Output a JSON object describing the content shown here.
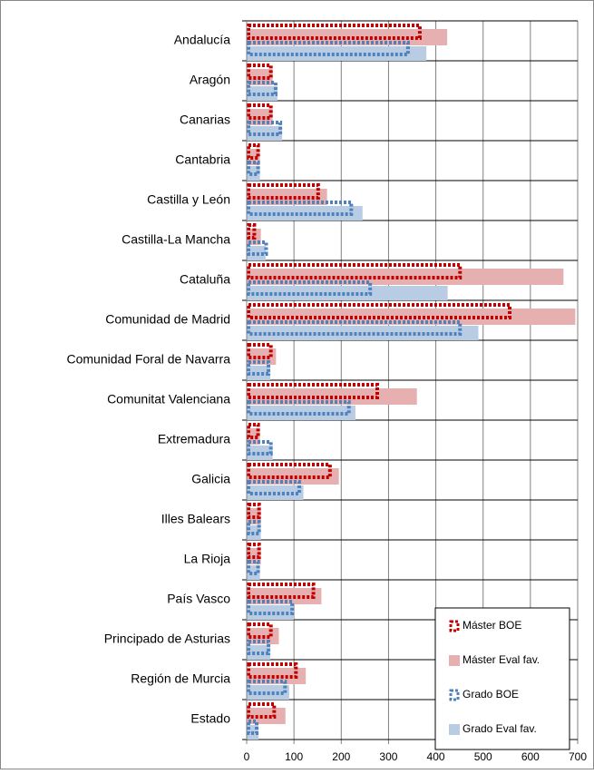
{
  "chart_data": {
    "type": "hbar",
    "categories": [
      "Andalucía",
      "Aragón",
      "Canarias",
      "Cantabria",
      "Castilla y León",
      "Castilla-La Mancha",
      "Cataluña",
      "Comunidad de Madrid",
      "Comunidad Foral de Navarra",
      "Comunitat Valenciana",
      "Extremadura",
      "Galicia",
      "Illes Balears",
      "La Rioja",
      "País Vasco",
      "Principado de Asturias",
      "Región de Murcia",
      "Estado"
    ],
    "series": [
      {
        "name": "Máster BOE",
        "color": "#c00000",
        "style": "dotted",
        "values": [
          370,
          55,
          55,
          28,
          155,
          20,
          455,
          560,
          55,
          280,
          28,
          180,
          30,
          30,
          145,
          55,
          108,
          62
        ]
      },
      {
        "name": "Máster Eval fav.",
        "color": "#e6b0b0",
        "style": "solid",
        "values": [
          424,
          55,
          55,
          28,
          170,
          30,
          670,
          695,
          62,
          360,
          28,
          195,
          30,
          30,
          158,
          68,
          125,
          82
        ]
      },
      {
        "name": "Grado BOE",
        "color": "#4f81bd",
        "style": "dotted",
        "values": [
          345,
          65,
          75,
          28,
          225,
          45,
          265,
          455,
          50,
          220,
          55,
          115,
          30,
          28,
          100,
          50,
          85,
          25
        ]
      },
      {
        "name": "Grado Eval fav.",
        "color": "#b8cce4",
        "style": "solid",
        "values": [
          380,
          65,
          75,
          28,
          245,
          40,
          425,
          490,
          50,
          230,
          55,
          120,
          30,
          28,
          100,
          50,
          90,
          25
        ]
      }
    ],
    "xlim": [
      0,
      700
    ],
    "xticks": [
      0,
      100,
      200,
      300,
      400,
      500,
      600,
      700
    ],
    "grid": true,
    "legend": "lower right"
  }
}
